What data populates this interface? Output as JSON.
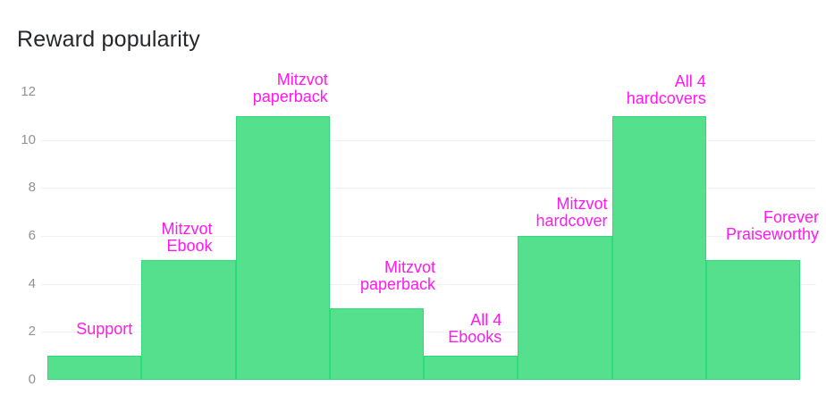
{
  "page": {
    "background": "#ffffff"
  },
  "chart_data": {
    "type": "bar",
    "title": "Reward popularity",
    "categories": [
      "Support",
      "Mitzvot Ebook",
      "Mitzvot paperback",
      "Mitzvot paperback",
      "All 4 Ebooks",
      "Mitzvot hardcover",
      "All 4 hardcovers",
      "Forever Praiseworthy"
    ],
    "values": [
      1,
      5,
      11,
      3,
      1,
      6,
      11,
      5
    ],
    "bar_labels": [
      [
        "Support"
      ],
      [
        "Mitzvot",
        "Ebook"
      ],
      [
        "Mitzvot",
        "paperback"
      ],
      [
        "Mitzvot",
        "paperback"
      ],
      [
        "All 4",
        "Ebooks"
      ],
      [
        "Mitzvot",
        "hardcover"
      ],
      [
        "All 4",
        "hardcovers"
      ],
      [
        "Forever",
        "Praiseworthy"
      ]
    ],
    "xlabel": "",
    "ylabel": "",
    "y_ticks": [
      0,
      2,
      4,
      6,
      8,
      10,
      12
    ],
    "ylim": [
      0,
      12
    ],
    "grid": "horizontal gridlines at 2,4,6,8,10 only",
    "legend": "none",
    "bar_style": "contiguous histogram bars with darker green outline",
    "colors": {
      "bar_fill": "#55e08e",
      "bar_border": "#2ddc78",
      "bar_label": "#ff1aee",
      "title": "#25272c",
      "tick": "#8f9299",
      "gridline": "#f1f1f3"
    }
  }
}
